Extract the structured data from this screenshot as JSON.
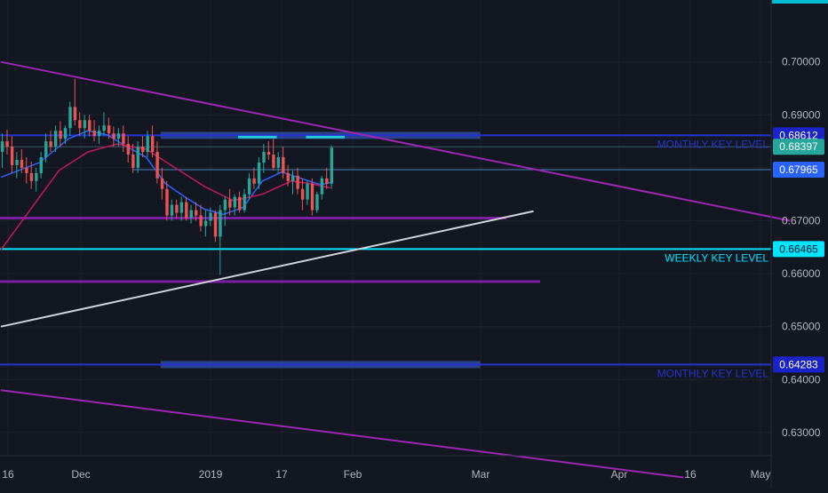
{
  "chart_data": {
    "type": "candlestick",
    "x_axis": {
      "ticks": [
        "16",
        "Dec",
        "2019",
        "17",
        "Feb",
        "Mar",
        "Apr",
        "16",
        "May"
      ]
    },
    "y_axis": {
      "ticks": [
        "0.63000",
        "0.64000",
        "0.65000",
        "0.66000",
        "0.67000",
        "0.68000",
        "0.69000",
        "0.70000"
      ],
      "range": [
        0.6215,
        0.7085
      ]
    },
    "price_labels": [
      {
        "text": "0.68612",
        "value": 0.68612,
        "color": "#1a23c8"
      },
      {
        "text": "0.68397",
        "value": 0.68397,
        "color": "#26a69a"
      },
      {
        "text": "0.67965",
        "value": 0.67965,
        "color": "#2962ff"
      },
      {
        "text": "0.66465",
        "value": 0.66465,
        "color": "#00e5ff"
      },
      {
        "text": "0.64283",
        "value": 0.64283,
        "color": "#1a23c8"
      }
    ],
    "annotations": [
      {
        "text": "MONTHLY KEY LEVEL",
        "value": 0.68612,
        "color": "#2433d0"
      },
      {
        "text": "WEEKLY KEY LEVEL",
        "value": 0.66465,
        "color": "#00e5ff"
      },
      {
        "text": "MONTHLY KEY LEVEL",
        "value": 0.64283,
        "color": "#2433d0"
      }
    ],
    "horizontal_levels": [
      {
        "value": 0.68612,
        "color": "#2433d0",
        "extent": "full"
      },
      {
        "value": 0.68397,
        "color": "#3d5a66",
        "extent": "full"
      },
      {
        "value": 0.67965,
        "color": "#4a7fbf",
        "extent": "partial"
      },
      {
        "value": 0.6705,
        "color": "#7b1fa2",
        "extent": "partial"
      },
      {
        "value": 0.66465,
        "color": "#00e5ff",
        "extent": "full"
      },
      {
        "value": 0.6585,
        "color": "#7b1fa2",
        "extent": "partial"
      },
      {
        "value": 0.64283,
        "color": "#2433d0",
        "extent": "full"
      }
    ],
    "trendlines": [
      {
        "color": "#9c27b0",
        "from": [
          0,
          0.7
        ],
        "to": [
          163,
          0.67
        ]
      },
      {
        "color": "#9c27b0",
        "from": [
          0,
          0.638
        ],
        "to": [
          141,
          0.6215
        ]
      },
      {
        "color": "#d1d4dc",
        "from": [
          0,
          0.65
        ],
        "to": [
          110,
          0.6718
        ]
      }
    ],
    "candles": [
      [
        0.683,
        0.6865,
        0.68,
        0.685
      ],
      [
        0.685,
        0.6872,
        0.6825,
        0.684
      ],
      [
        0.684,
        0.686,
        0.679,
        0.6805
      ],
      [
        0.6805,
        0.683,
        0.678,
        0.6815
      ],
      [
        0.6815,
        0.6835,
        0.679,
        0.68
      ],
      [
        0.68,
        0.682,
        0.677,
        0.679
      ],
      [
        0.679,
        0.6812,
        0.676,
        0.6775
      ],
      [
        0.6775,
        0.68,
        0.6755,
        0.679
      ],
      [
        0.679,
        0.683,
        0.678,
        0.682
      ],
      [
        0.682,
        0.6865,
        0.681,
        0.685
      ],
      [
        0.685,
        0.687,
        0.683,
        0.684
      ],
      [
        0.684,
        0.688,
        0.683,
        0.687
      ],
      [
        0.687,
        0.6888,
        0.684,
        0.6855
      ],
      [
        0.6855,
        0.688,
        0.6845,
        0.6875
      ],
      [
        0.6875,
        0.6925,
        0.686,
        0.6915
      ],
      [
        0.6915,
        0.6968,
        0.688,
        0.689
      ],
      [
        0.689,
        0.6905,
        0.686,
        0.6875
      ],
      [
        0.6875,
        0.69,
        0.6855,
        0.689
      ],
      [
        0.689,
        0.69,
        0.686,
        0.687
      ],
      [
        0.687,
        0.689,
        0.685,
        0.686
      ],
      [
        0.686,
        0.688,
        0.6845,
        0.687
      ],
      [
        0.687,
        0.6905,
        0.686,
        0.688
      ],
      [
        0.688,
        0.6895,
        0.6855,
        0.6865
      ],
      [
        0.6865,
        0.6878,
        0.684,
        0.6855
      ],
      [
        0.6855,
        0.6875,
        0.684,
        0.6865
      ],
      [
        0.6865,
        0.688,
        0.683,
        0.6845
      ],
      [
        0.6845,
        0.686,
        0.681,
        0.6825
      ],
      [
        0.6825,
        0.6845,
        0.679,
        0.68
      ],
      [
        0.68,
        0.685,
        0.679,
        0.684
      ],
      [
        0.684,
        0.686,
        0.682,
        0.683
      ],
      [
        0.683,
        0.687,
        0.682,
        0.686
      ],
      [
        0.686,
        0.688,
        0.682,
        0.683
      ],
      [
        0.683,
        0.685,
        0.677,
        0.678
      ],
      [
        0.678,
        0.68,
        0.674,
        0.676
      ],
      [
        0.676,
        0.6775,
        0.67,
        0.671
      ],
      [
        0.671,
        0.674,
        0.67,
        0.673
      ],
      [
        0.673,
        0.674,
        0.6705,
        0.6715
      ],
      [
        0.6715,
        0.6745,
        0.67,
        0.6735
      ],
      [
        0.6735,
        0.6745,
        0.67,
        0.6705
      ],
      [
        0.6705,
        0.673,
        0.6695,
        0.672
      ],
      [
        0.672,
        0.6735,
        0.67,
        0.671
      ],
      [
        0.671,
        0.673,
        0.668,
        0.669
      ],
      [
        0.669,
        0.672,
        0.667,
        0.67
      ],
      [
        0.67,
        0.6725,
        0.669,
        0.6715
      ],
      [
        0.6715,
        0.672,
        0.666,
        0.667
      ],
      [
        0.667,
        0.673,
        0.6598,
        0.672
      ],
      [
        0.672,
        0.6745,
        0.669,
        0.674
      ],
      [
        0.674,
        0.676,
        0.671,
        0.6725
      ],
      [
        0.6725,
        0.675,
        0.671,
        0.6745
      ],
      [
        0.6745,
        0.6755,
        0.6715,
        0.672
      ],
      [
        0.672,
        0.676,
        0.6715,
        0.675
      ],
      [
        0.675,
        0.679,
        0.674,
        0.678
      ],
      [
        0.678,
        0.68,
        0.676,
        0.677
      ],
      [
        0.677,
        0.682,
        0.676,
        0.681
      ],
      [
        0.681,
        0.6845,
        0.679,
        0.683
      ],
      [
        0.683,
        0.685,
        0.6815,
        0.6825
      ],
      [
        0.6825,
        0.6855,
        0.6795,
        0.68
      ],
      [
        0.68,
        0.683,
        0.679,
        0.682
      ],
      [
        0.682,
        0.684,
        0.678,
        0.679
      ],
      [
        0.679,
        0.6805,
        0.6765,
        0.6775
      ],
      [
        0.6775,
        0.6795,
        0.675,
        0.6785
      ],
      [
        0.6785,
        0.68,
        0.675,
        0.676
      ],
      [
        0.676,
        0.678,
        0.672,
        0.674
      ],
      [
        0.674,
        0.6775,
        0.673,
        0.677
      ],
      [
        0.677,
        0.678,
        0.671,
        0.672
      ],
      [
        0.672,
        0.6755,
        0.6715,
        0.675
      ],
      [
        0.675,
        0.6785,
        0.674,
        0.678
      ],
      [
        0.678,
        0.68,
        0.676,
        0.677
      ],
      [
        0.677,
        0.6842,
        0.676,
        0.6838
      ]
    ],
    "moving_averages": [
      {
        "name": "",
        "color": "#2962ff",
        "values": [
          [
            0,
            0.6782
          ],
          [
            8,
            0.681
          ],
          [
            14,
            0.6855
          ],
          [
            18,
            0.687
          ],
          [
            22,
            0.6862
          ],
          [
            26,
            0.684
          ],
          [
            30,
            0.682
          ],
          [
            34,
            0.677
          ],
          [
            38,
            0.6745
          ],
          [
            42,
            0.6722
          ],
          [
            46,
            0.6712
          ],
          [
            50,
            0.6725
          ],
          [
            54,
            0.6775
          ],
          [
            58,
            0.6792
          ],
          [
            62,
            0.678
          ],
          [
            66,
            0.6768
          ],
          [
            68,
            0.6772
          ]
        ]
      },
      {
        "name": "",
        "color": "#c2185b",
        "values": [
          [
            0,
            0.6645
          ],
          [
            6,
            0.672
          ],
          [
            12,
            0.6795
          ],
          [
            18,
            0.683
          ],
          [
            24,
            0.6845
          ],
          [
            30,
            0.6835
          ],
          [
            36,
            0.68
          ],
          [
            42,
            0.6765
          ],
          [
            48,
            0.6738
          ],
          [
            54,
            0.675
          ],
          [
            60,
            0.6775
          ],
          [
            64,
            0.677
          ],
          [
            68,
            0.6762
          ]
        ]
      }
    ],
    "resistance_marks": [
      {
        "value": 0.6858,
        "from": 49,
        "to": 57,
        "color": "#26c6da"
      },
      {
        "value": 0.6858,
        "from": 63,
        "to": 71,
        "color": "#26c6da"
      }
    ],
    "zones": [
      {
        "value": 0.68612,
        "from": 33,
        "to": 99,
        "color": "#2e4a9e"
      },
      {
        "value": 0.64283,
        "from": 33,
        "to": 99,
        "color": "#2e4a9e"
      }
    ]
  }
}
